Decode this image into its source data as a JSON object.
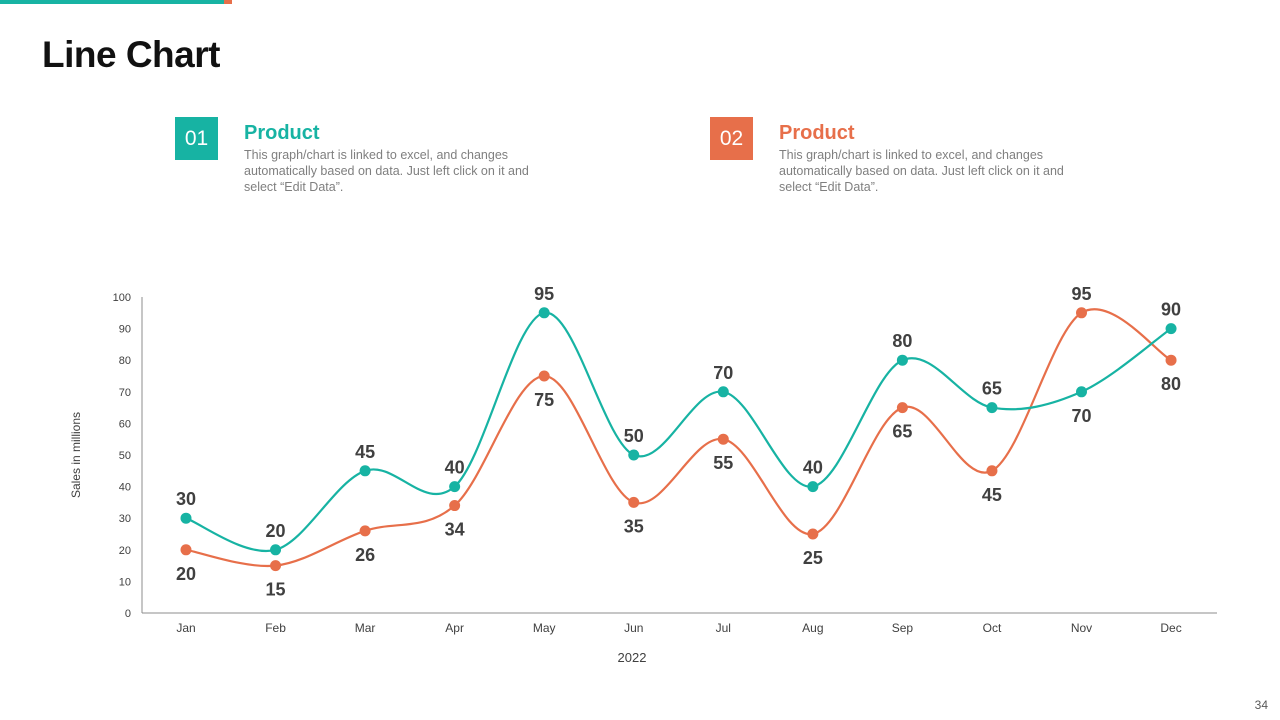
{
  "slide": {
    "title": "Line Chart",
    "page_number": "34"
  },
  "colors": {
    "teal": "#17b3a3",
    "orange": "#e76f4a"
  },
  "legend": [
    {
      "number": "01",
      "title": "Product",
      "description": "This graph/chart is linked to excel, and changes automatically based on data. Just left click on it and select “Edit Data”."
    },
    {
      "number": "02",
      "title": "Product",
      "description": "This graph/chart is linked to excel, and changes automatically based on data. Just left click on it and select “Edit Data”."
    }
  ],
  "chart_data": {
    "type": "line",
    "title": "",
    "xlabel": "2022",
    "ylabel": "Sales in millions",
    "categories": [
      "Jan",
      "Feb",
      "Mar",
      "Apr",
      "May",
      "Jun",
      "Jul",
      "Aug",
      "Sep",
      "Oct",
      "Nov",
      "Dec"
    ],
    "ylim": [
      0,
      100
    ],
    "yticks": [
      0,
      10,
      20,
      30,
      40,
      50,
      60,
      70,
      80,
      90,
      100
    ],
    "grid": false,
    "series": [
      {
        "name": "Product 01",
        "color": "#17b3a3",
        "values": [
          30,
          20,
          45,
          40,
          95,
          50,
          70,
          40,
          80,
          65,
          70,
          90
        ]
      },
      {
        "name": "Product 02",
        "color": "#e76f4a",
        "values": [
          20,
          15,
          26,
          34,
          75,
          35,
          55,
          25,
          65,
          45,
          95,
          80
        ]
      }
    ]
  }
}
